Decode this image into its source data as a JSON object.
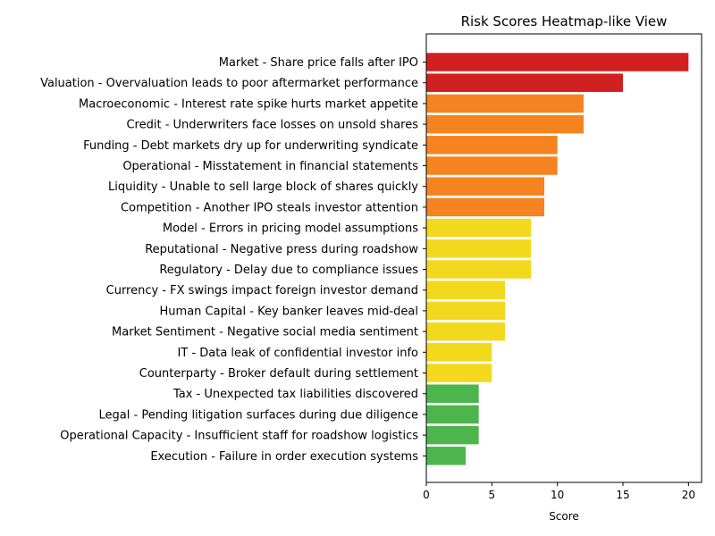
{
  "chart_data": {
    "type": "bar",
    "orientation": "horizontal",
    "title": "Risk Scores Heatmap-like View",
    "xlabel": "Score",
    "ylabel": "",
    "xlim": [
      0,
      21
    ],
    "xticks": [
      0,
      5,
      10,
      15,
      20
    ],
    "grid": false,
    "colors": {
      "high": "#d21f1f",
      "elevated": "#f5831f",
      "moderate": "#f2d91e",
      "low": "#4cb64c"
    },
    "categories": [
      "Market - Share price falls after IPO",
      "Valuation - Overvaluation leads to poor aftermarket performance",
      "Macroeconomic - Interest rate spike hurts market appetite",
      "Credit - Underwriters face losses on unsold shares",
      "Funding - Debt markets dry up for underwriting syndicate",
      "Operational - Misstatement in financial statements",
      "Liquidity - Unable to sell large block of shares quickly",
      "Competition - Another IPO steals investor attention",
      "Model - Errors in pricing model assumptions",
      "Reputational - Negative press during roadshow",
      "Regulatory - Delay due to compliance issues",
      "Currency - FX swings impact foreign investor demand",
      "Human Capital - Key banker leaves mid-deal",
      "Market Sentiment - Negative social media sentiment",
      "IT - Data leak of confidential investor info",
      "Counterparty - Broker default during settlement",
      "Tax - Unexpected tax liabilities discovered",
      "Legal - Pending litigation surfaces during due diligence",
      "Operational Capacity - Insufficient staff for roadshow logistics",
      "Execution - Failure in order execution systems"
    ],
    "values": [
      20,
      15,
      12,
      12,
      10,
      10,
      9,
      9,
      8,
      8,
      8,
      6,
      6,
      6,
      5,
      5,
      4,
      4,
      4,
      3
    ],
    "color_levels": [
      "high",
      "high",
      "elevated",
      "elevated",
      "elevated",
      "elevated",
      "elevated",
      "elevated",
      "moderate",
      "moderate",
      "moderate",
      "moderate",
      "moderate",
      "moderate",
      "moderate",
      "moderate",
      "low",
      "low",
      "low",
      "low"
    ]
  }
}
